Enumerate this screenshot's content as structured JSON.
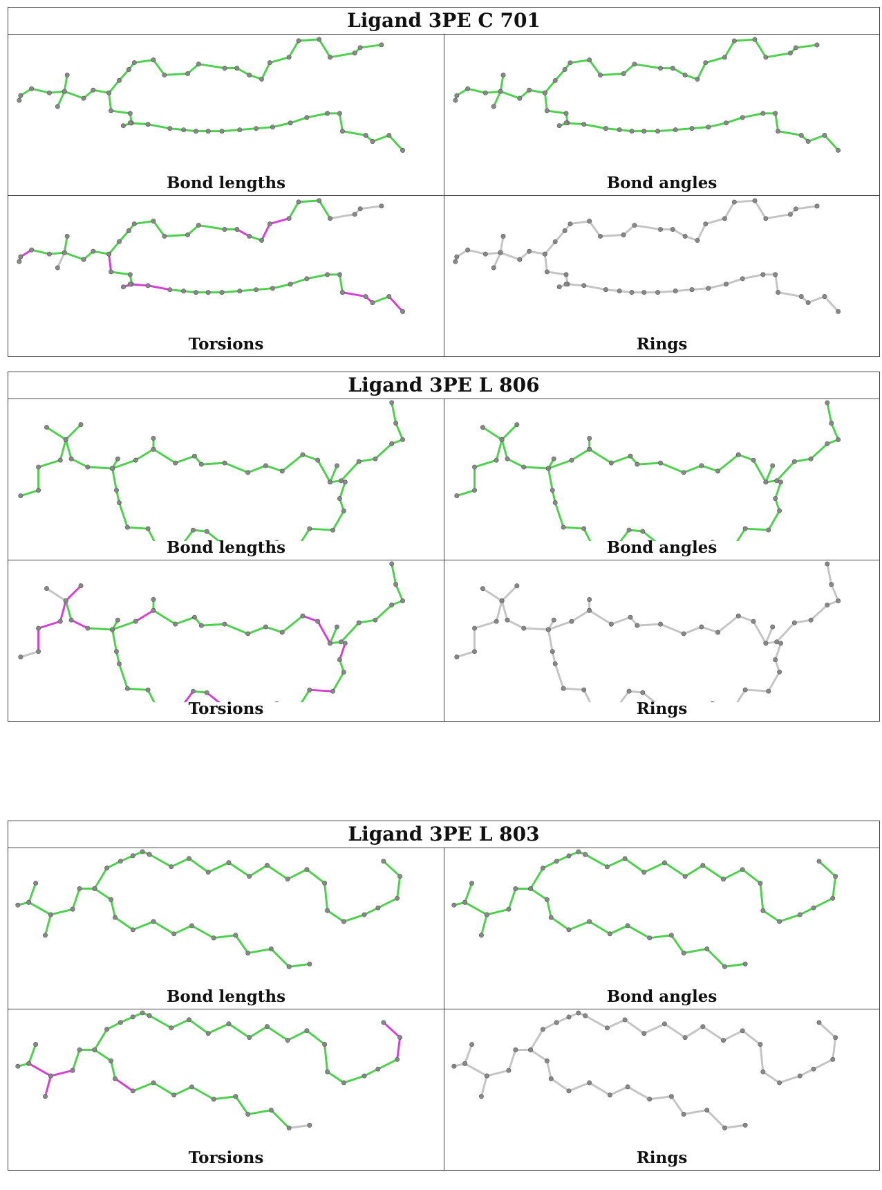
{
  "panels": [
    {
      "title": "Ligand 3PE C 701",
      "cells": [
        "Bond lengths",
        "Bond angles",
        "Torsions",
        "Rings"
      ]
    },
    {
      "title": "Ligand 3PE L 806",
      "cells": [
        "Bond lengths",
        "Bond angles",
        "Torsions",
        "Rings"
      ]
    },
    {
      "title": "Ligand 3PE L 803",
      "cells": [
        "Bond lengths",
        "Bond angles",
        "Torsions",
        "Rings"
      ]
    }
  ],
  "colors": {
    "ok": "#4dd14d",
    "outlier": "#d63fd6",
    "neutral": "#c4c4c4",
    "atom": "#888888"
  }
}
